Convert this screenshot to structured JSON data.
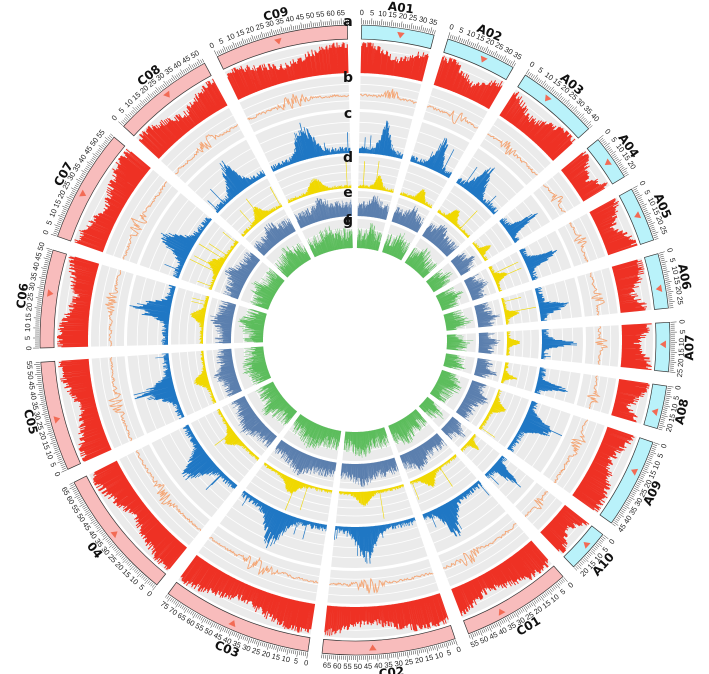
{
  "track_letters": [
    "a",
    "b",
    "c",
    "d",
    "e",
    "f",
    "g"
  ],
  "colors": {
    "subgenome_A_band": "#b9f2fa",
    "subgenome_C_band": "#f8bcbc",
    "centromere_marker": "#f26b55",
    "gene_density_bar": "#ee3124",
    "gc_line": "#f4a777",
    "track_d_bar": "#1f77c4",
    "track_e_bar": "#f0d800",
    "track_f_bar": "#5b7fae",
    "track_g_bar": "#5cbd5c",
    "track_background": "#ebebeb",
    "gridline": "#ffffff"
  },
  "chromosomes": [
    {
      "name": "A01",
      "genome": "A",
      "length_mb": 37
    },
    {
      "name": "A02",
      "genome": "A",
      "length_mb": 36
    },
    {
      "name": "A03",
      "genome": "A",
      "length_mb": 42
    },
    {
      "name": "A04",
      "genome": "A",
      "length_mb": 23
    },
    {
      "name": "A05",
      "genome": "A",
      "length_mb": 28
    },
    {
      "name": "A06",
      "genome": "A",
      "length_mb": 28
    },
    {
      "name": "A07",
      "genome": "A",
      "length_mb": 25
    },
    {
      "name": "A08",
      "genome": "A",
      "length_mb": 22
    },
    {
      "name": "A09",
      "genome": "A",
      "length_mb": 46
    },
    {
      "name": "A10",
      "genome": "A",
      "length_mb": 22
    },
    {
      "name": "C01",
      "genome": "C",
      "length_mb": 56
    },
    {
      "name": "C02",
      "genome": "C",
      "length_mb": 68
    },
    {
      "name": "C03",
      "genome": "C",
      "length_mb": 77
    },
    {
      "name": "04",
      "genome": "C",
      "length_mb": 67
    },
    {
      "name": "C05",
      "genome": "C",
      "length_mb": 56
    },
    {
      "name": "C06",
      "genome": "C",
      "length_mb": 50
    },
    {
      "name": "C07",
      "genome": "C",
      "length_mb": 58
    },
    {
      "name": "C08",
      "genome": "C",
      "length_mb": 52
    },
    {
      "name": "C09",
      "genome": "C",
      "length_mb": 68
    }
  ]
}
